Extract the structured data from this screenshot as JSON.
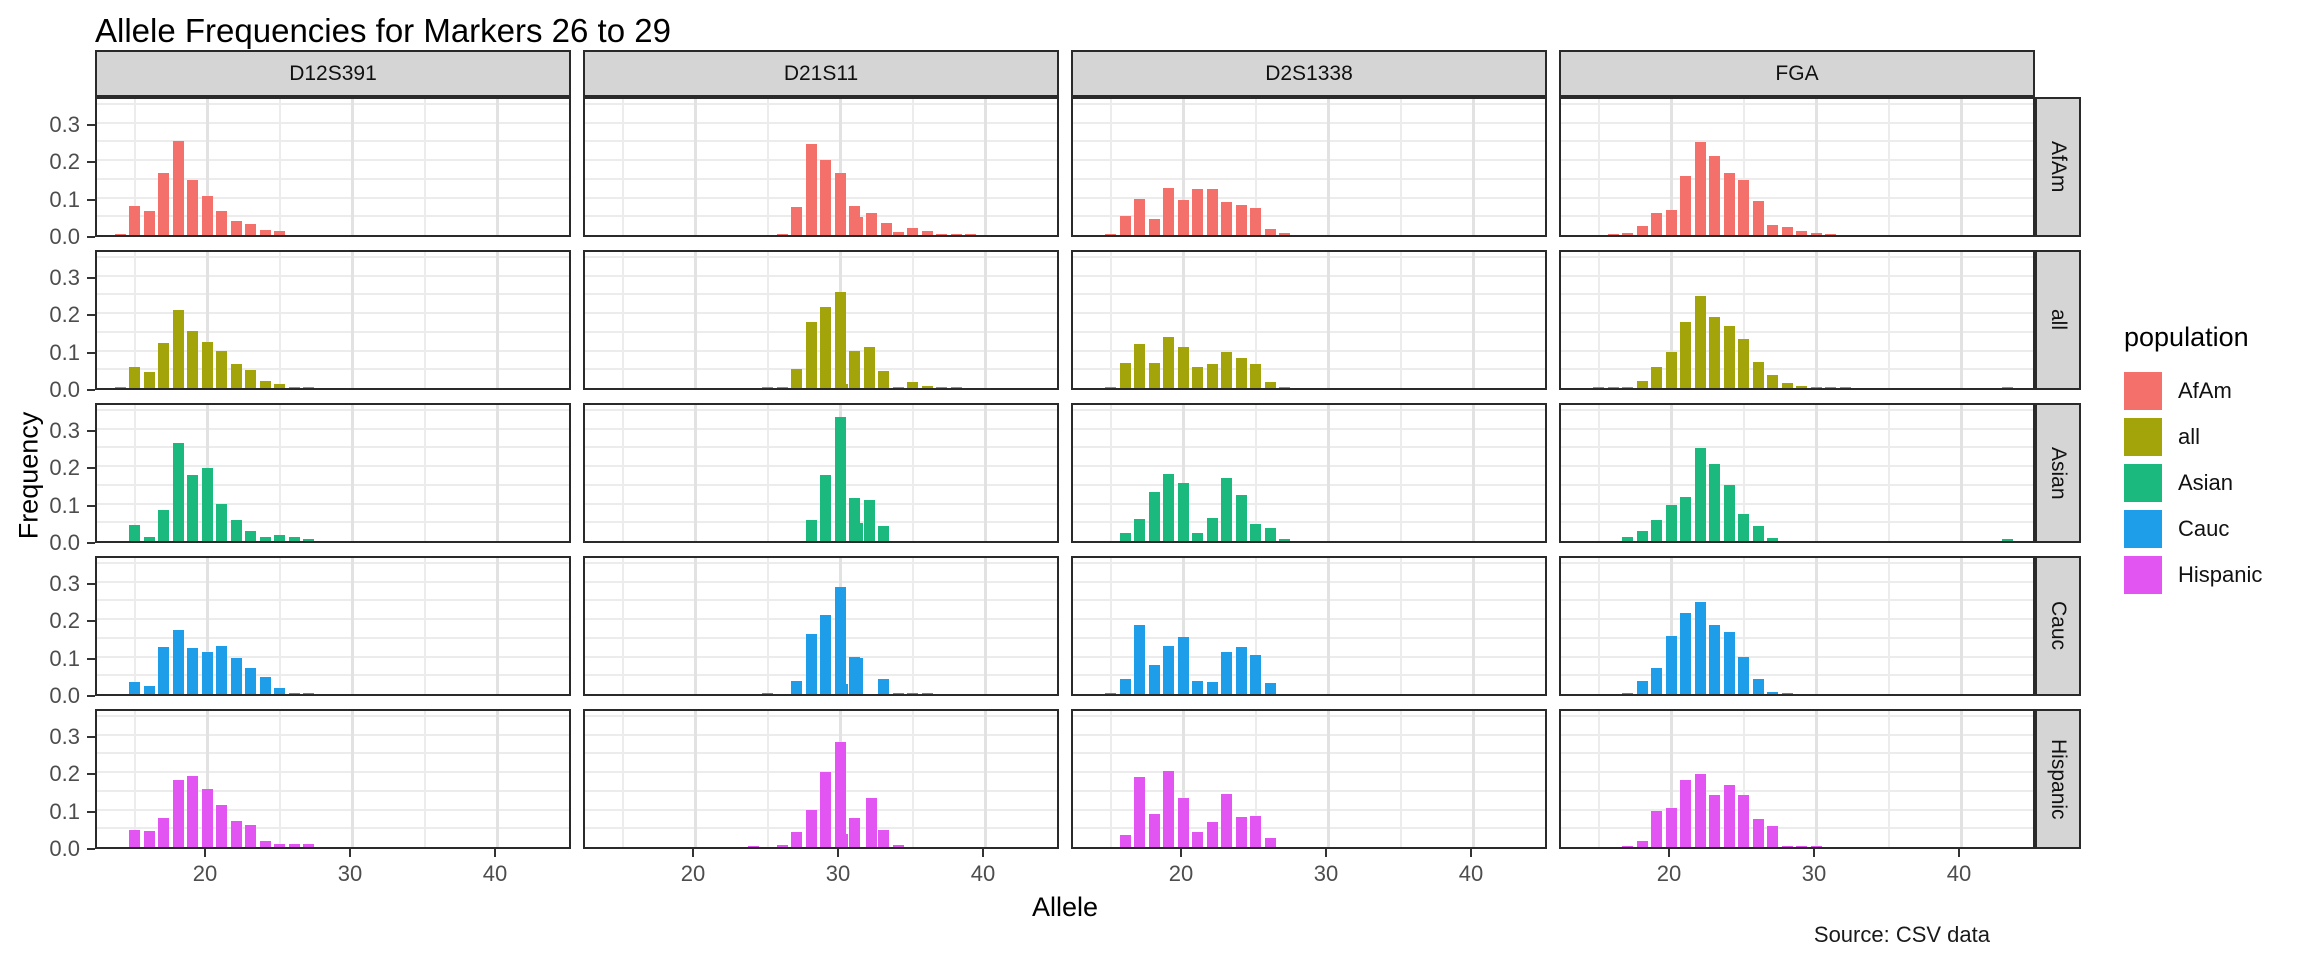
{
  "title": "Allele Frequencies for Markers 26 to 29",
  "caption": "Source: CSV data",
  "axes": {
    "x_title": "Allele",
    "y_title": "Frequency",
    "x_tick_values": [
      20,
      30,
      40
    ],
    "y_tick_labels": [
      "0.3",
      "0.2",
      "0.1",
      "0.0"
    ],
    "y_tick_values": [
      0.3,
      0.2,
      0.1,
      0.0
    ]
  },
  "legend": {
    "title": "population",
    "items": [
      {
        "label": "AfAm",
        "color": "#F4716B"
      },
      {
        "label": "all",
        "color": "#A3A40A"
      },
      {
        "label": "Asian",
        "color": "#1BB97D"
      },
      {
        "label": "Cauc",
        "color": "#1E9DE9"
      },
      {
        "label": "Hispanic",
        "color": "#E355F2"
      }
    ]
  },
  "chart_data": {
    "type": "bar",
    "title": "Allele Frequencies for Markers 26 to 29",
    "xlabel": "Allele",
    "ylabel": "Frequency",
    "facet_columns": [
      "D12S391",
      "D21S11",
      "D2S1338",
      "FGA"
    ],
    "facet_rows": [
      "AfAm",
      "all",
      "Asian",
      "Cauc",
      "Hispanic"
    ],
    "x_range": [
      12.4,
      45.0
    ],
    "y_range": [
      0,
      0.37
    ],
    "x_minor_gridlines": [
      15,
      25,
      35,
      45
    ],
    "x_major_gridlines": [
      20,
      30,
      40
    ],
    "y_gridline_step": 0.05,
    "colors": {
      "AfAm": "#F4716B",
      "all": "#A3A40A",
      "Asian": "#1BB97D",
      "Cauc": "#1E9DE9",
      "Hispanic": "#E355F2"
    },
    "panels": {
      "D12S391": {
        "AfAm": [
          [
            14,
            0.004
          ],
          [
            15,
            0.078
          ],
          [
            16,
            0.065
          ],
          [
            17,
            0.165
          ],
          [
            18,
            0.25
          ],
          [
            19,
            0.146
          ],
          [
            20,
            0.105
          ],
          [
            21,
            0.063
          ],
          [
            22,
            0.038
          ],
          [
            23,
            0.029
          ],
          [
            24,
            0.014
          ],
          [
            25,
            0.01
          ]
        ],
        "all": [
          [
            14,
            0.002
          ],
          [
            15,
            0.055
          ],
          [
            16,
            0.044
          ],
          [
            17,
            0.12
          ],
          [
            18,
            0.207
          ],
          [
            19,
            0.151
          ],
          [
            20,
            0.124
          ],
          [
            21,
            0.1
          ],
          [
            22,
            0.063
          ],
          [
            23,
            0.048
          ],
          [
            24,
            0.018
          ],
          [
            25,
            0.012
          ],
          [
            26,
            0.004
          ],
          [
            27,
            0.003
          ]
        ],
        "Asian": [
          [
            15,
            0.042
          ],
          [
            16,
            0.012
          ],
          [
            17,
            0.083
          ],
          [
            18,
            0.262
          ],
          [
            19,
            0.177
          ],
          [
            20,
            0.196
          ],
          [
            21,
            0.099
          ],
          [
            22,
            0.055
          ],
          [
            23,
            0.027
          ],
          [
            24,
            0.011
          ],
          [
            25,
            0.016
          ],
          [
            26,
            0.011
          ],
          [
            27,
            0.005
          ]
        ],
        "Cauc": [
          [
            15,
            0.032
          ],
          [
            16,
            0.022
          ],
          [
            17,
            0.125
          ],
          [
            18,
            0.17
          ],
          [
            19,
            0.122
          ],
          [
            20,
            0.111
          ],
          [
            21,
            0.128
          ],
          [
            22,
            0.095
          ],
          [
            23,
            0.07
          ],
          [
            24,
            0.046
          ],
          [
            25,
            0.016
          ],
          [
            26,
            0.004
          ],
          [
            27,
            0.004
          ]
        ],
        "Hispanic": [
          [
            15,
            0.045
          ],
          [
            16,
            0.042
          ],
          [
            17,
            0.077
          ],
          [
            18,
            0.179
          ],
          [
            19,
            0.19
          ],
          [
            20,
            0.155
          ],
          [
            21,
            0.112
          ],
          [
            22,
            0.07
          ],
          [
            23,
            0.058
          ],
          [
            24,
            0.017
          ],
          [
            25,
            0.007
          ],
          [
            26,
            0.007
          ],
          [
            27,
            0.007
          ]
        ]
      },
      "D21S11": {
        "AfAm": [
          [
            26,
            0.004
          ],
          [
            27,
            0.074
          ],
          [
            28,
            0.242
          ],
          [
            29,
            0.2
          ],
          [
            30,
            0.166
          ],
          [
            31,
            0.077
          ],
          [
            31.2,
            0.047
          ],
          [
            32.2,
            0.06
          ],
          [
            33.2,
            0.033
          ],
          [
            34,
            0.008
          ],
          [
            35,
            0.02
          ],
          [
            36,
            0.012
          ],
          [
            37,
            0.004
          ],
          [
            38,
            0.004
          ],
          [
            39,
            0.004
          ]
        ],
        "all": [
          [
            25,
            0.002
          ],
          [
            26,
            0.003
          ],
          [
            27,
            0.05
          ],
          [
            28,
            0.175
          ],
          [
            29,
            0.215
          ],
          [
            30,
            0.255
          ],
          [
            30.2,
            0.012
          ],
          [
            31,
            0.1
          ],
          [
            32,
            0.11
          ],
          [
            33,
            0.045
          ],
          [
            34,
            0.004
          ],
          [
            35,
            0.015
          ],
          [
            36,
            0.005
          ],
          [
            37,
            0.003
          ],
          [
            38,
            0.002
          ]
        ],
        "Asian": [
          [
            28,
            0.055
          ],
          [
            29,
            0.175
          ],
          [
            30,
            0.33
          ],
          [
            31,
            0.115
          ],
          [
            31.2,
            0.047
          ],
          [
            32,
            0.11
          ],
          [
            33,
            0.04
          ]
        ],
        "Cauc": [
          [
            25,
            0.003
          ],
          [
            27,
            0.035
          ],
          [
            28,
            0.16
          ],
          [
            29,
            0.21
          ],
          [
            30,
            0.285
          ],
          [
            30.2,
            0.028
          ],
          [
            31,
            0.1
          ],
          [
            31.2,
            0.095
          ],
          [
            33,
            0.04
          ],
          [
            34,
            0.004
          ],
          [
            35,
            0.003
          ],
          [
            36,
            0.003
          ]
        ],
        "Hispanic": [
          [
            24,
            0.003
          ],
          [
            26,
            0.005
          ],
          [
            27,
            0.04
          ],
          [
            28,
            0.1
          ],
          [
            29,
            0.2
          ],
          [
            30,
            0.28
          ],
          [
            30.2,
            0.035
          ],
          [
            31,
            0.077
          ],
          [
            32.2,
            0.13
          ],
          [
            33,
            0.045
          ],
          [
            34,
            0.005
          ]
        ]
      },
      "D2S1338": {
        "AfAm": [
          [
            15,
            0.004
          ],
          [
            16,
            0.05
          ],
          [
            17,
            0.095
          ],
          [
            18,
            0.044
          ],
          [
            19,
            0.125
          ],
          [
            20,
            0.094
          ],
          [
            21,
            0.124
          ],
          [
            22,
            0.123
          ],
          [
            23,
            0.088
          ],
          [
            24,
            0.079
          ],
          [
            25,
            0.073
          ],
          [
            26,
            0.017
          ],
          [
            27,
            0.005
          ]
        ],
        "all": [
          [
            15,
            0.003
          ],
          [
            16,
            0.068
          ],
          [
            17,
            0.118
          ],
          [
            18,
            0.068
          ],
          [
            19,
            0.135
          ],
          [
            20,
            0.11
          ],
          [
            21,
            0.055
          ],
          [
            22,
            0.063
          ],
          [
            23,
            0.097
          ],
          [
            24,
            0.079
          ],
          [
            25,
            0.063
          ],
          [
            26,
            0.016
          ],
          [
            27,
            0.004
          ]
        ],
        "Asian": [
          [
            16,
            0.022
          ],
          [
            17,
            0.058
          ],
          [
            18,
            0.132
          ],
          [
            19,
            0.178
          ],
          [
            20,
            0.155
          ],
          [
            21,
            0.021
          ],
          [
            22,
            0.061
          ],
          [
            23,
            0.168
          ],
          [
            24,
            0.124
          ],
          [
            25,
            0.046
          ],
          [
            26,
            0.036
          ],
          [
            27,
            0.005
          ]
        ],
        "Cauc": [
          [
            15,
            0.003
          ],
          [
            16,
            0.04
          ],
          [
            17,
            0.185
          ],
          [
            18,
            0.078
          ],
          [
            19,
            0.128
          ],
          [
            20,
            0.152
          ],
          [
            21,
            0.035
          ],
          [
            22,
            0.033
          ],
          [
            23,
            0.112
          ],
          [
            24,
            0.125
          ],
          [
            25,
            0.103
          ],
          [
            26,
            0.03
          ]
        ],
        "Hispanic": [
          [
            16,
            0.033
          ],
          [
            17,
            0.186
          ],
          [
            18,
            0.088
          ],
          [
            19,
            0.203
          ],
          [
            20,
            0.131
          ],
          [
            21,
            0.04
          ],
          [
            22,
            0.067
          ],
          [
            23,
            0.142
          ],
          [
            24,
            0.079
          ],
          [
            25,
            0.082
          ],
          [
            26,
            0.025
          ]
        ]
      },
      "FGA": {
        "AfAm": [
          [
            16,
            0.004
          ],
          [
            17,
            0.005
          ],
          [
            18,
            0.024
          ],
          [
            19,
            0.06
          ],
          [
            20,
            0.066
          ],
          [
            21,
            0.157
          ],
          [
            22,
            0.249
          ],
          [
            23,
            0.212
          ],
          [
            24,
            0.166
          ],
          [
            25,
            0.148
          ],
          [
            26,
            0.09
          ],
          [
            27,
            0.027
          ],
          [
            28,
            0.021
          ],
          [
            29,
            0.012
          ],
          [
            30,
            0.005
          ],
          [
            31,
            0.004
          ]
        ],
        "all": [
          [
            15,
            0.002
          ],
          [
            16,
            0.003
          ],
          [
            17,
            0.004
          ],
          [
            18,
            0.02
          ],
          [
            19,
            0.056
          ],
          [
            20,
            0.096
          ],
          [
            21,
            0.175
          ],
          [
            22,
            0.245
          ],
          [
            23,
            0.19
          ],
          [
            24,
            0.165
          ],
          [
            25,
            0.13
          ],
          [
            26,
            0.07
          ],
          [
            27,
            0.036
          ],
          [
            28,
            0.013
          ],
          [
            29,
            0.006
          ],
          [
            30,
            0.004
          ],
          [
            31,
            0.003
          ],
          [
            32,
            0.002
          ],
          [
            43.2,
            0.002
          ]
        ],
        "Asian": [
          [
            17,
            0.012
          ],
          [
            18,
            0.026
          ],
          [
            19,
            0.056
          ],
          [
            20,
            0.096
          ],
          [
            21,
            0.117
          ],
          [
            22,
            0.247
          ],
          [
            23,
            0.206
          ],
          [
            24,
            0.15
          ],
          [
            25,
            0.071
          ],
          [
            26,
            0.041
          ],
          [
            27,
            0.008
          ],
          [
            43.2,
            0.006
          ]
        ],
        "Cauc": [
          [
            17,
            0.004
          ],
          [
            18,
            0.034
          ],
          [
            19,
            0.07
          ],
          [
            20,
            0.155
          ],
          [
            21,
            0.215
          ],
          [
            22,
            0.245
          ],
          [
            23,
            0.185
          ],
          [
            24,
            0.165
          ],
          [
            25,
            0.1
          ],
          [
            26,
            0.04
          ],
          [
            27,
            0.006
          ],
          [
            28,
            0.003
          ]
        ],
        "Hispanic": [
          [
            17,
            0.003
          ],
          [
            18,
            0.016
          ],
          [
            19,
            0.095
          ],
          [
            20,
            0.105
          ],
          [
            21,
            0.18
          ],
          [
            22,
            0.195
          ],
          [
            23,
            0.14
          ],
          [
            24,
            0.165
          ],
          [
            25,
            0.14
          ],
          [
            26,
            0.075
          ],
          [
            27,
            0.055
          ],
          [
            28,
            0.004
          ],
          [
            29,
            0.004
          ],
          [
            30,
            0.004
          ]
        ]
      }
    }
  }
}
